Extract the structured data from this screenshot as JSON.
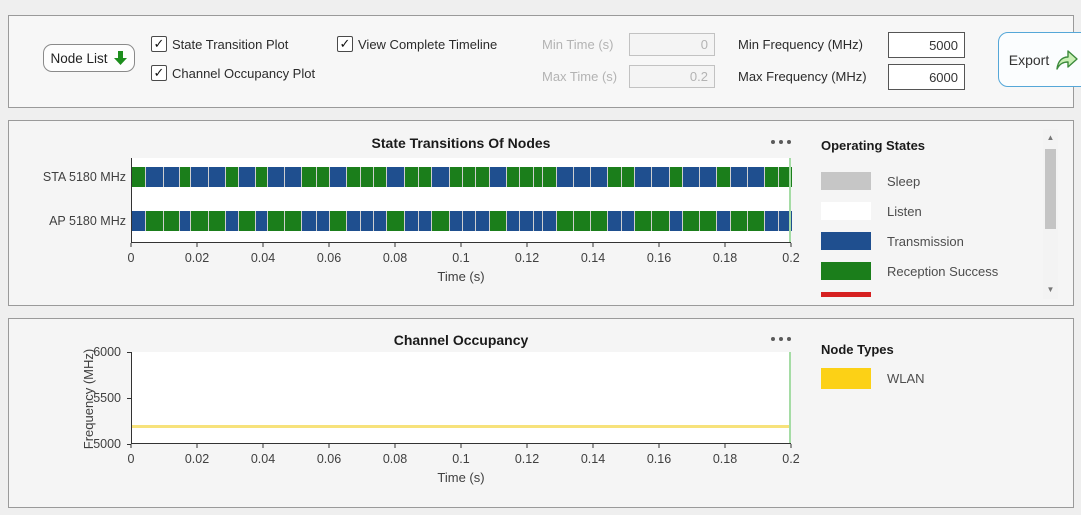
{
  "toolbar": {
    "node_list": {
      "label": "Node List"
    },
    "checkboxes": [
      {
        "label": "State Transition Plot",
        "checked": true
      },
      {
        "label": "Channel Occupancy Plot",
        "checked": true
      },
      {
        "label": "View Complete Timeline",
        "checked": true
      }
    ],
    "fields": [
      {
        "label": "Min Time (s)",
        "value": "0",
        "disabled": true
      },
      {
        "label": "Max Time (s)",
        "value": "0.2",
        "disabled": true
      },
      {
        "label": "Min Frequency (MHz)",
        "value": "5000",
        "disabled": false
      },
      {
        "label": "Max Frequency (MHz)",
        "value": "6000",
        "disabled": false
      }
    ],
    "export": {
      "label": "Export"
    }
  },
  "state_plot": {
    "title": "State Transitions Of Nodes",
    "x_label": "Time (s)",
    "x_ticks": [
      "0",
      "0.02",
      "0.04",
      "0.06",
      "0.08",
      "0.1",
      "0.12",
      "0.14",
      "0.16",
      "0.18",
      "0.2"
    ],
    "rows": [
      {
        "label": "STA 5180 MHz"
      },
      {
        "label": "AP 5180 MHz"
      }
    ],
    "colors": {
      "reception": "#1b7e1b",
      "transmission": "#1f4f8f"
    },
    "sta_segments": [
      {
        "c": "g",
        "w": 14
      },
      {
        "c": "b",
        "w": 17
      },
      {
        "c": "b",
        "w": 16
      },
      {
        "c": "g",
        "w": 11
      },
      {
        "c": "b",
        "w": 17
      },
      {
        "c": "b",
        "w": 17
      },
      {
        "c": "g",
        "w": 13
      },
      {
        "c": "b",
        "w": 17
      },
      {
        "c": "g",
        "w": 11
      },
      {
        "c": "b",
        "w": 17
      },
      {
        "c": "b",
        "w": 17
      },
      {
        "c": "g",
        "w": 14
      },
      {
        "c": "g",
        "w": 13
      },
      {
        "c": "b",
        "w": 17
      },
      {
        "c": "g",
        "w": 13
      },
      {
        "c": "g",
        "w": 13
      },
      {
        "c": "g",
        "w": 13
      },
      {
        "c": "b",
        "w": 17
      },
      {
        "c": "g",
        "w": 14
      },
      {
        "c": "g",
        "w": 13
      },
      {
        "c": "b",
        "w": 17
      },
      {
        "c": "g",
        "w": 13
      },
      {
        "c": "g",
        "w": 13
      },
      {
        "c": "g",
        "w": 13
      },
      {
        "c": "b",
        "w": 17
      },
      {
        "c": "g",
        "w": 13
      },
      {
        "c": "g",
        "w": 13
      },
      {
        "c": "g",
        "w": 9
      },
      {
        "c": "g",
        "w": 13
      },
      {
        "c": "b",
        "w": 17
      },
      {
        "c": "b",
        "w": 17
      },
      {
        "c": "b",
        "w": 17
      },
      {
        "c": "g",
        "w": 13
      },
      {
        "c": "g",
        "w": 13
      },
      {
        "c": "b",
        "w": 17
      },
      {
        "c": "b",
        "w": 17
      },
      {
        "c": "g",
        "w": 13
      },
      {
        "c": "b",
        "w": 17
      },
      {
        "c": "b",
        "w": 17
      },
      {
        "c": "g",
        "w": 13
      },
      {
        "c": "b",
        "w": 17
      },
      {
        "c": "b",
        "w": 17
      },
      {
        "c": "g",
        "w": 13
      },
      {
        "c": "g",
        "w": 14
      }
    ],
    "ap_segments": [
      {
        "c": "b",
        "w": 14
      },
      {
        "c": "g",
        "w": 17
      },
      {
        "c": "g",
        "w": 16
      },
      {
        "c": "b",
        "w": 11
      },
      {
        "c": "g",
        "w": 17
      },
      {
        "c": "g",
        "w": 17
      },
      {
        "c": "b",
        "w": 13
      },
      {
        "c": "g",
        "w": 17
      },
      {
        "c": "b",
        "w": 11
      },
      {
        "c": "g",
        "w": 17
      },
      {
        "c": "g",
        "w": 17
      },
      {
        "c": "b",
        "w": 14
      },
      {
        "c": "b",
        "w": 13
      },
      {
        "c": "g",
        "w": 17
      },
      {
        "c": "b",
        "w": 13
      },
      {
        "c": "b",
        "w": 13
      },
      {
        "c": "b",
        "w": 13
      },
      {
        "c": "g",
        "w": 17
      },
      {
        "c": "b",
        "w": 14
      },
      {
        "c": "b",
        "w": 13
      },
      {
        "c": "g",
        "w": 17
      },
      {
        "c": "b",
        "w": 13
      },
      {
        "c": "b",
        "w": 13
      },
      {
        "c": "b",
        "w": 13
      },
      {
        "c": "g",
        "w": 17
      },
      {
        "c": "b",
        "w": 13
      },
      {
        "c": "b",
        "w": 13
      },
      {
        "c": "b",
        "w": 9
      },
      {
        "c": "b",
        "w": 13
      },
      {
        "c": "g",
        "w": 17
      },
      {
        "c": "g",
        "w": 17
      },
      {
        "c": "g",
        "w": 17
      },
      {
        "c": "b",
        "w": 13
      },
      {
        "c": "b",
        "w": 13
      },
      {
        "c": "g",
        "w": 17
      },
      {
        "c": "g",
        "w": 17
      },
      {
        "c": "b",
        "w": 13
      },
      {
        "c": "g",
        "w": 17
      },
      {
        "c": "g",
        "w": 17
      },
      {
        "c": "b",
        "w": 13
      },
      {
        "c": "g",
        "w": 17
      },
      {
        "c": "g",
        "w": 17
      },
      {
        "c": "b",
        "w": 13
      },
      {
        "c": "b",
        "w": 14
      }
    ],
    "legend": {
      "title": "Operating States",
      "items": [
        {
          "label": "Sleep",
          "color": "#c6c6c6"
        },
        {
          "label": "Listen",
          "color": "#ffffff"
        },
        {
          "label": "Transmission",
          "color": "#1f4f8f"
        },
        {
          "label": "Reception Success",
          "color": "#1b7e1b"
        }
      ],
      "partial_item_color": "#d62020"
    }
  },
  "occupancy_plot": {
    "title": "Channel Occupancy",
    "x_label": "Time (s)",
    "y_label": "Frequency (MHz)",
    "x_ticks": [
      "0",
      "0.02",
      "0.04",
      "0.06",
      "0.08",
      "0.1",
      "0.12",
      "0.14",
      "0.16",
      "0.18",
      "0.2"
    ],
    "y_ticks": [
      "6000",
      "5500",
      "5000"
    ],
    "band": {
      "frequency_mhz": 5180,
      "color": "#f7e27b"
    },
    "legend": {
      "title": "Node Types",
      "items": [
        {
          "label": "WLAN",
          "color": "#fcd116"
        }
      ]
    }
  },
  "chart_data": [
    {
      "type": "timeline",
      "title": "State Transitions Of Nodes",
      "xlabel": "Time (s)",
      "xlim": [
        0,
        0.2
      ],
      "rows": [
        "STA 5180 MHz",
        "AP 5180 MHz"
      ],
      "legend": [
        "Sleep",
        "Listen",
        "Transmission",
        "Reception Success"
      ],
      "note": "STA and AP bars show complementary alternating Transmission (blue) and Reception Success (green) intervals spanning 0 to 0.2 s"
    },
    {
      "type": "timeline",
      "title": "Channel Occupancy",
      "xlabel": "Time (s)",
      "ylabel": "Frequency (MHz)",
      "xlim": [
        0,
        0.2
      ],
      "ylim": [
        5000,
        6000
      ],
      "series": [
        {
          "name": "WLAN",
          "frequency_mhz": 5180,
          "occupied_span_s": [
            0,
            0.2
          ]
        }
      ]
    }
  ]
}
